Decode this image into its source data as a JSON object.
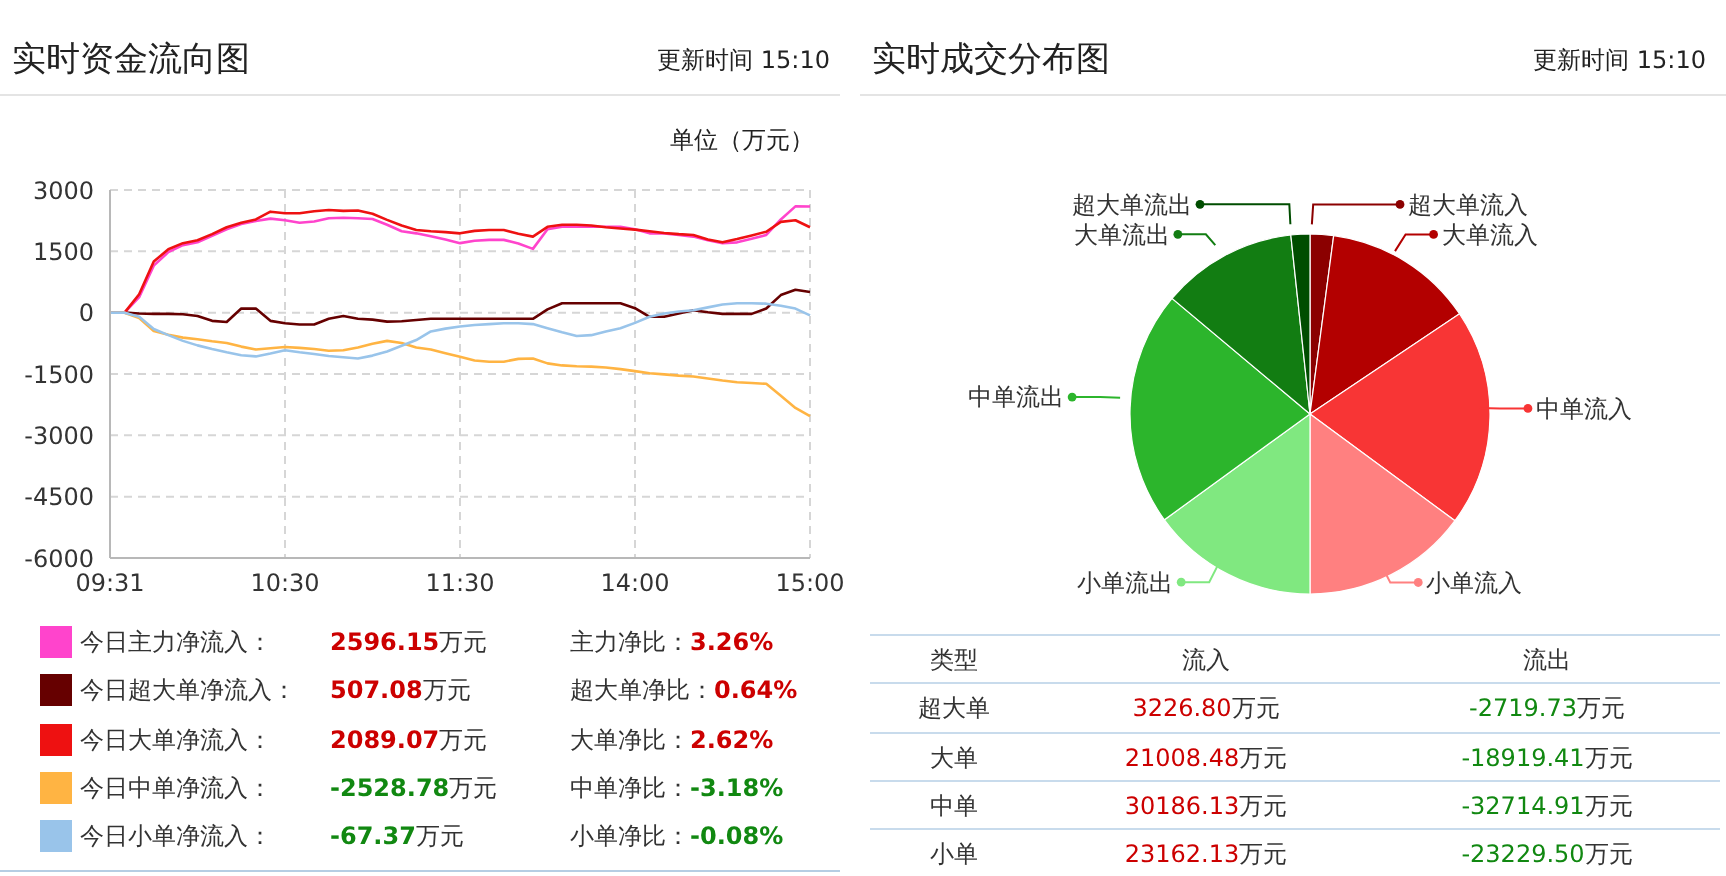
{
  "chart_data": [
    {
      "type": "line",
      "title": "实时资金流向图",
      "subtitle": "更新时间 15:10",
      "ylabel": "单位（万元）",
      "categories": [
        "09:31",
        null,
        null,
        null,
        null,
        null,
        null,
        null,
        null,
        null,
        null,
        null,
        "10:30",
        null,
        null,
        null,
        null,
        null,
        null,
        null,
        null,
        null,
        null,
        null,
        "11:30",
        null,
        null,
        null,
        null,
        null,
        null,
        null,
        null,
        null,
        null,
        null,
        "14:00",
        null,
        null,
        null,
        null,
        null,
        null,
        null,
        null,
        null,
        null,
        null,
        "15:00"
      ],
      "ylim": [
        -6000,
        3000
      ],
      "yticks": [
        -6000,
        -4500,
        -3000,
        -1500,
        0,
        1500,
        3000
      ],
      "grid": true,
      "legend": "bottom",
      "series": [
        {
          "name": "今日主力净流入：",
          "color": "#ff44cc",
          "values": [
            0,
            0,
            380,
            1150,
            1480,
            1650,
            1720,
            1880,
            2040,
            2170,
            2240,
            2300,
            2260,
            2200,
            2230,
            2310,
            2320,
            2310,
            2290,
            2150,
            1990,
            1940,
            1870,
            1790,
            1700,
            1760,
            1780,
            1780,
            1690,
            1560,
            2040,
            2100,
            2100,
            2100,
            2100,
            2100,
            2040,
            1940,
            1940,
            1900,
            1860,
            1770,
            1700,
            1720,
            1810,
            1900,
            2280,
            2600,
            2596.15
          ]
        },
        {
          "name": "今日超大单净流入：",
          "color": "#660000",
          "values": [
            0,
            0,
            -20,
            -30,
            -30,
            -40,
            -80,
            -200,
            -230,
            100,
            100,
            -200,
            -260,
            -290,
            -290,
            -150,
            -80,
            -150,
            -170,
            -220,
            -210,
            -180,
            -150,
            -150,
            -150,
            -150,
            -150,
            -150,
            -150,
            -150,
            80,
            230,
            230,
            230,
            230,
            230,
            110,
            -100,
            -100,
            -20,
            60,
            10,
            -30,
            -30,
            -30,
            100,
            430,
            560,
            507.08
          ]
        },
        {
          "name": "今日大单净流入：",
          "color": "#ee1111",
          "values": [
            0,
            0,
            450,
            1250,
            1550,
            1700,
            1770,
            1920,
            2090,
            2200,
            2280,
            2470,
            2430,
            2430,
            2480,
            2510,
            2490,
            2500,
            2420,
            2270,
            2130,
            2020,
            1990,
            1970,
            1940,
            2000,
            2020,
            2020,
            1930,
            1860,
            2100,
            2150,
            2150,
            2130,
            2090,
            2060,
            2030,
            1990,
            1950,
            1920,
            1900,
            1790,
            1720,
            1800,
            1890,
            1980,
            2220,
            2260,
            2089.07
          ]
        },
        {
          "name": "今日中单净流入：",
          "color": "#ffb443",
          "values": [
            0,
            0,
            -130,
            -450,
            -540,
            -610,
            -650,
            -700,
            -740,
            -830,
            -900,
            -870,
            -840,
            -860,
            -890,
            -930,
            -920,
            -850,
            -760,
            -690,
            -740,
            -850,
            -900,
            -990,
            -1080,
            -1170,
            -1200,
            -1200,
            -1130,
            -1120,
            -1240,
            -1290,
            -1310,
            -1320,
            -1340,
            -1380,
            -1430,
            -1480,
            -1510,
            -1540,
            -1560,
            -1610,
            -1660,
            -1700,
            -1720,
            -1740,
            -2030,
            -2330,
            -2528.78
          ]
        },
        {
          "name": "今日小单净流入：",
          "color": "#99c4ea",
          "values": [
            0,
            0,
            -100,
            -400,
            -550,
            -690,
            -800,
            -890,
            -970,
            -1040,
            -1070,
            -1000,
            -920,
            -970,
            -1010,
            -1060,
            -1090,
            -1120,
            -1050,
            -950,
            -810,
            -670,
            -460,
            -390,
            -340,
            -300,
            -280,
            -260,
            -260,
            -280,
            -380,
            -480,
            -570,
            -550,
            -460,
            -380,
            -250,
            -100,
            -20,
            30,
            60,
            130,
            200,
            230,
            230,
            220,
            170,
            100,
            -67.37
          ]
        }
      ],
      "annotations": [
        "2596.15万元",
        "主力净比：3.26%",
        "507.08万元",
        "超大单净比：0.64%",
        "2089.07万元",
        "大单净比：2.62%",
        "-2528.78万元",
        "中单净比：-3.18%",
        "-67.37万元",
        "小单净比：-0.08%"
      ]
    },
    {
      "type": "pie",
      "title": "实时成交分布图",
      "subtitle": "更新时间 15:10",
      "categories": [
        "超大单流入",
        "大单流入",
        "中单流入",
        "小单流入",
        "小单流出",
        "中单流出",
        "大单流出",
        "超大单流出"
      ],
      "values": [
        2.1,
        13.5,
        19.5,
        14.9,
        15.0,
        21.1,
        12.2,
        1.7
      ],
      "colors": [
        "#8b0000",
        "#b30000",
        "#f83535",
        "#ff8080",
        "#80e880",
        "#2cb52c",
        "#127d12",
        "#004d00"
      ],
      "annotations": [
        "类型",
        "流入",
        "流出",
        "超大单",
        "3226.80万元",
        "-2719.73万元",
        "大单",
        "21008.48万元",
        "-18919.41万元",
        "中单",
        "30186.13万元",
        "-32714.91万元",
        "小单",
        "23162.13万元",
        "-23229.50万元"
      ]
    }
  ]
}
